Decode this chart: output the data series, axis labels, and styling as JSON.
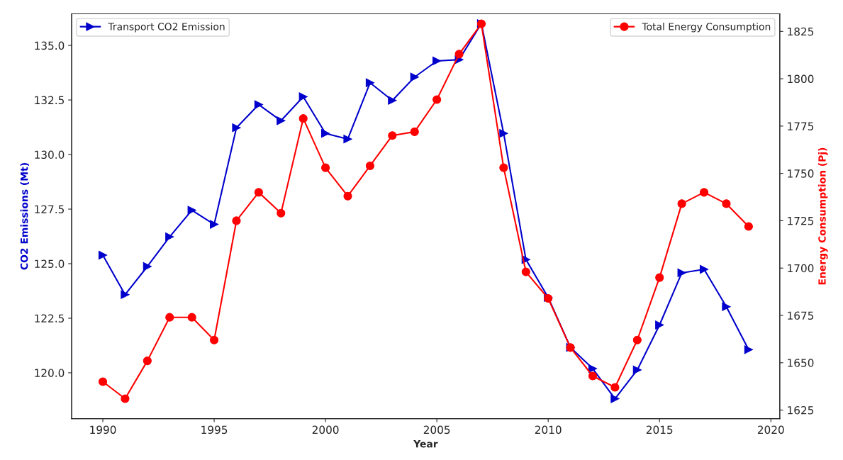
{
  "chart_data": {
    "type": "line",
    "xlabel": "Year",
    "ylabel": "CO2 Emissions (Mt)",
    "y2label": "Energy Consumption (Pj)",
    "x": [
      1990,
      1991,
      1992,
      1993,
      1994,
      1995,
      1996,
      1997,
      1998,
      1999,
      2000,
      2001,
      2002,
      2003,
      2004,
      2005,
      2006,
      2007,
      2008,
      2009,
      2010,
      2011,
      2012,
      2013,
      2014,
      2015,
      2016,
      2017,
      2018,
      2019
    ],
    "series": [
      {
        "name": "Transport CO2 Emission",
        "color": "#0000cc",
        "marker": "triangle",
        "values": [
          125.39,
          123.58,
          124.87,
          126.23,
          127.45,
          126.8,
          131.23,
          132.29,
          131.55,
          132.65,
          130.97,
          130.71,
          133.29,
          132.48,
          133.55,
          134.29,
          134.35,
          136.0,
          130.97,
          125.19,
          123.45,
          121.16,
          120.19,
          118.81,
          120.13,
          122.19,
          124.58,
          124.74,
          123.03,
          121.06
        ]
      },
      {
        "name": "Total Energy Consumption",
        "color": "#ff0000",
        "marker": "circle",
        "axis": "y2",
        "values": [
          1640,
          1631,
          1651,
          1674,
          1674,
          1662,
          1725,
          1740,
          1729,
          1779,
          1753,
          1738,
          1754,
          1770,
          1772,
          1789,
          1813,
          1829,
          1753,
          1698,
          1684,
          1658,
          1643,
          1637,
          1662,
          1695,
          1734,
          1740,
          1734,
          1722
        ]
      }
    ],
    "xlim": [
      1988.6,
      2020.4
    ],
    "xticks": [
      1990,
      1995,
      2000,
      2005,
      2010,
      2015,
      2020
    ],
    "ylim": [
      117.9,
      136.45
    ],
    "yticks": [
      {
        "value": 120,
        "label": "120.0"
      },
      {
        "value": 122.5,
        "label": "122.5"
      },
      {
        "value": 125,
        "label": "125.0"
      },
      {
        "value": 127.5,
        "label": "127.5"
      },
      {
        "value": 130,
        "label": "130.0"
      },
      {
        "value": 132.5,
        "label": "132.5"
      },
      {
        "value": 135,
        "label": "135.0"
      }
    ],
    "y2lim": [
      1620.5,
      1834.3
    ],
    "y2ticks": [
      1625,
      1650,
      1675,
      1700,
      1725,
      1750,
      1775,
      1800,
      1825
    ],
    "grid": false,
    "legend": "top",
    "line_style": "solid"
  }
}
